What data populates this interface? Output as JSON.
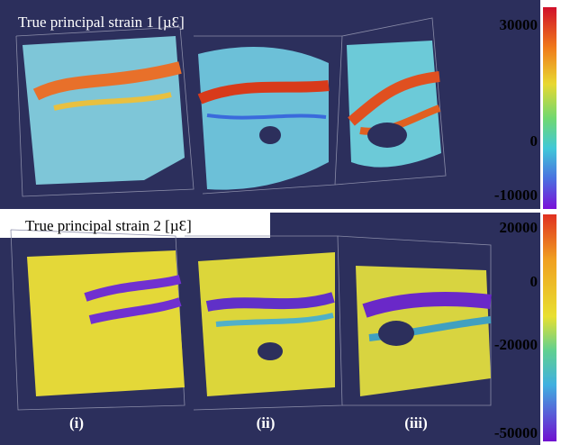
{
  "panels": [
    {
      "title": "True principal strain 1 [µƐ]",
      "colorbar_ticks": [
        30000,
        0,
        -10000
      ]
    },
    {
      "title": "True principal strain 2 [µƐ]",
      "colorbar_ticks": [
        20000,
        0,
        -20000,
        -50000
      ]
    }
  ],
  "labels": [
    "(i)",
    "(ii)",
    "(iii)"
  ]
}
